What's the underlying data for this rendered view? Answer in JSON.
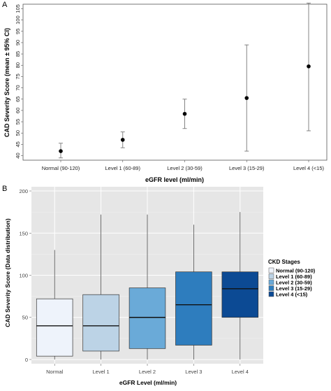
{
  "chart_data": [
    {
      "panel": "A",
      "type": "scatter",
      "xlabel": "eGFR level (ml/min)",
      "ylabel": "CAD Severity Score (mean ± 95% CI)",
      "categories": [
        "Normal (90-120)",
        "Level 1 (60-89)",
        "Level 2 (30-59)",
        "Level 3 (15-29)",
        "Level 4 (<15)"
      ],
      "values": [
        42,
        47,
        58.5,
        65.5,
        79.5
      ],
      "ci_low": [
        39,
        43.5,
        52,
        42,
        51
      ],
      "ci_high": [
        45.5,
        50.5,
        65,
        89,
        107.5
      ],
      "ylim": [
        38,
        107
      ],
      "yticks": [
        40,
        45,
        50,
        55,
        60,
        65,
        70,
        75,
        80,
        85,
        90,
        95,
        100,
        105
      ],
      "grid": false,
      "marker_color": "#000000",
      "errorbar_color": "#777777"
    },
    {
      "panel": "B",
      "type": "box",
      "xlabel": "eGFR Level (ml/min)",
      "ylabel": "CAD Severity Score (Data distribution)",
      "categories": [
        "Normal",
        "Level 1",
        "Level 2",
        "Level 3",
        "Level 4"
      ],
      "boxes": [
        {
          "min": 0,
          "q1": 4,
          "median": 40,
          "q3": 72,
          "max": 130,
          "color": "#eef3fb"
        },
        {
          "min": 0,
          "q1": 10,
          "median": 40,
          "q3": 77,
          "max": 172,
          "color": "#bcd3e6"
        },
        {
          "min": 0,
          "q1": 13,
          "median": 50,
          "q3": 85,
          "max": 172,
          "color": "#6aaad8"
        },
        {
          "min": 0,
          "q1": 17,
          "median": 65,
          "q3": 104,
          "max": 160,
          "color": "#2e7dbe"
        },
        {
          "min": 0,
          "q1": 50,
          "median": 84,
          "q3": 104,
          "max": 175,
          "color": "#0c4a94"
        }
      ],
      "ylim": [
        -5,
        205
      ],
      "yticks": [
        0,
        50,
        100,
        150,
        200
      ],
      "grid": true,
      "background": "#e6e6e6",
      "legend": {
        "title": "CKD Stages",
        "position": "right",
        "entries": [
          "Normal (90-120)",
          "Level 1 (60-89)",
          "Level 2 (30-59)",
          "Level 3 (15-29)",
          "Level 4 (<15)"
        ]
      }
    }
  ]
}
